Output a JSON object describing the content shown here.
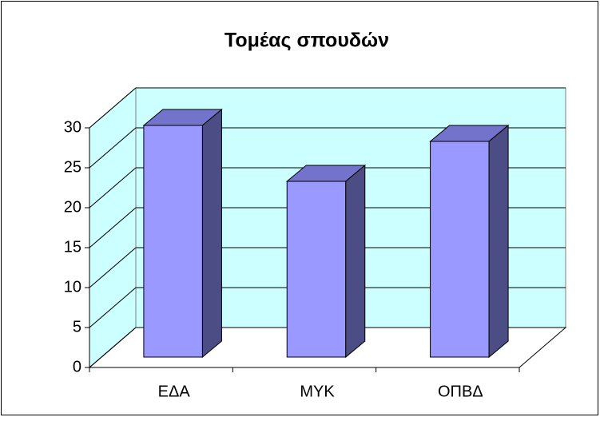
{
  "chart_data": {
    "type": "bar3d",
    "title": "Τομέας σπουδών",
    "categories": [
      "ΕΔΑ",
      "ΜΥΚ",
      "ΟΠΒΔ"
    ],
    "values": [
      29,
      22,
      27
    ],
    "color": "#9999ff",
    "top_color": "#7373cc",
    "side_color": "#4d4d85",
    "wall_color": "#ccffff",
    "ylim": [
      0,
      30
    ],
    "yticks": [
      0,
      5,
      10,
      15,
      20,
      25,
      30
    ],
    "grid": true
  }
}
